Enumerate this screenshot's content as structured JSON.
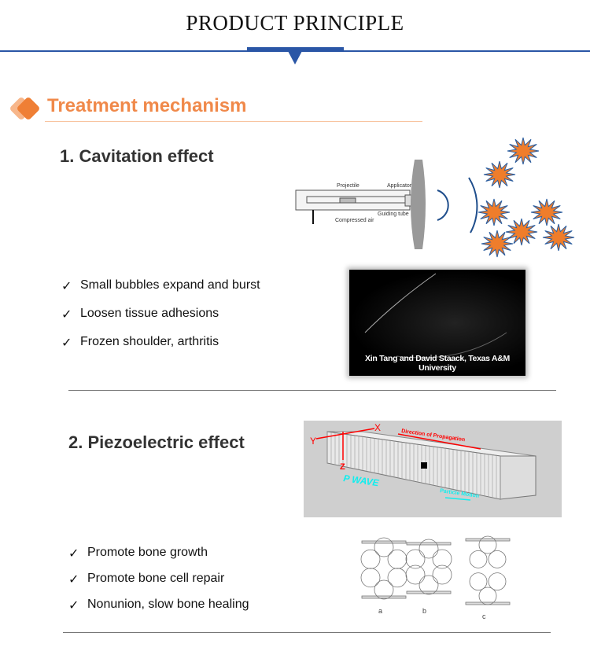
{
  "header": {
    "title": "PRODUCT PRINCIPLE"
  },
  "section": {
    "title": "Treatment mechanism",
    "accent": "#f0894a",
    "rule_color": "#2a56a6"
  },
  "cavitation": {
    "heading": "1. Cavitation effect",
    "diagram_labels": {
      "projectile": "Projectile",
      "applicator": "Applicator",
      "guiding_tube": "Guiding tube",
      "compressed_air": "Compressed air"
    },
    "bullets": [
      "Small bubbles expand and burst",
      "Loosen tissue adhesions",
      "Frozen shoulder, arthritis"
    ],
    "photo_caption": "Xin Tang and David Staack, Texas A&M University",
    "check_icon": "check-icon"
  },
  "piezo": {
    "heading": "2. Piezoelectric effect",
    "diagram_labels": {
      "x": "X",
      "y": "Y",
      "z": "Z",
      "direction": "Direction of Propagation",
      "wave": "P WAVE",
      "particle": "Particle Motion"
    },
    "bullets": [
      "Promote bone growth",
      "Promote bone cell repair",
      "Nonunion, slow bone healing"
    ],
    "figure_labels": [
      "a",
      "b",
      "c"
    ]
  }
}
